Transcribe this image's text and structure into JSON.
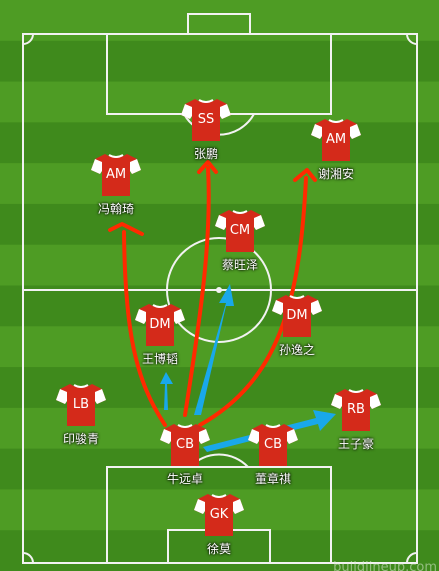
{
  "lineup": [
    {
      "id": "ss",
      "pos": "SS",
      "name": "张鹏"
    },
    {
      "id": "am-right",
      "pos": "AM",
      "name": "谢湘安"
    },
    {
      "id": "am-left",
      "pos": "AM",
      "name": "冯翰琦"
    },
    {
      "id": "cm",
      "pos": "CM",
      "name": "蔡旺泽"
    },
    {
      "id": "dm-left",
      "pos": "DM",
      "name": "王博韬"
    },
    {
      "id": "dm-right",
      "pos": "DM",
      "name": "孙逸之"
    },
    {
      "id": "lb",
      "pos": "LB",
      "name": "印骏青"
    },
    {
      "id": "rb",
      "pos": "RB",
      "name": "王子豪"
    },
    {
      "id": "cb-left",
      "pos": "CB",
      "name": "牛远卓"
    },
    {
      "id": "cb-right",
      "pos": "CB",
      "name": "董章祺"
    },
    {
      "id": "gk",
      "pos": "GK",
      "name": "徐莫"
    }
  ],
  "watermark": "buildlineup.com",
  "colors": {
    "grass_dark": "#3f8a1c",
    "grass_light": "#4e9c24",
    "lines": "#f2f2f2",
    "shirt": "#d42a1a",
    "sleeve": "#ffffff",
    "run_arrow": "#ff2a00",
    "pass_arrow": "#19a8ea"
  }
}
